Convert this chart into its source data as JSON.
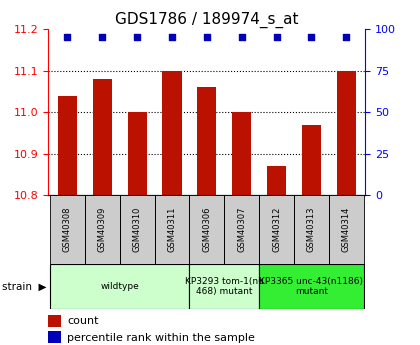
{
  "title": "GDS1786 / 189974_s_at",
  "samples": [
    "GSM40308",
    "GSM40309",
    "GSM40310",
    "GSM40311",
    "GSM40306",
    "GSM40307",
    "GSM40312",
    "GSM40313",
    "GSM40314"
  ],
  "counts": [
    11.04,
    11.08,
    11.0,
    11.1,
    11.06,
    11.0,
    10.87,
    10.97,
    11.1
  ],
  "ylim_left": [
    10.8,
    11.2
  ],
  "ylim_right": [
    0,
    100
  ],
  "yticks_left": [
    10.8,
    10.9,
    11.0,
    11.1,
    11.2
  ],
  "yticks_right": [
    0,
    25,
    50,
    75,
    100
  ],
  "bar_color": "#bb1100",
  "dot_color": "#0000bb",
  "group_spans": [
    {
      "start": 0,
      "end": 3,
      "label": "wildtype",
      "color": "#ccffcc"
    },
    {
      "start": 4,
      "end": 5,
      "label": "KP3293 tom-1(nu\n468) mutant",
      "color": "#ccffcc"
    },
    {
      "start": 6,
      "end": 8,
      "label": "KP3365 unc-43(n1186)\nmutant",
      "color": "#33ee33"
    }
  ],
  "legend_items": [
    {
      "label": "count",
      "color": "#bb1100"
    },
    {
      "label": "percentile rank within the sample",
      "color": "#0000bb"
    }
  ],
  "title_fontsize": 11,
  "tick_fontsize": 8,
  "sample_fontsize": 6,
  "strain_fontsize": 6.5,
  "legend_fontsize": 8
}
